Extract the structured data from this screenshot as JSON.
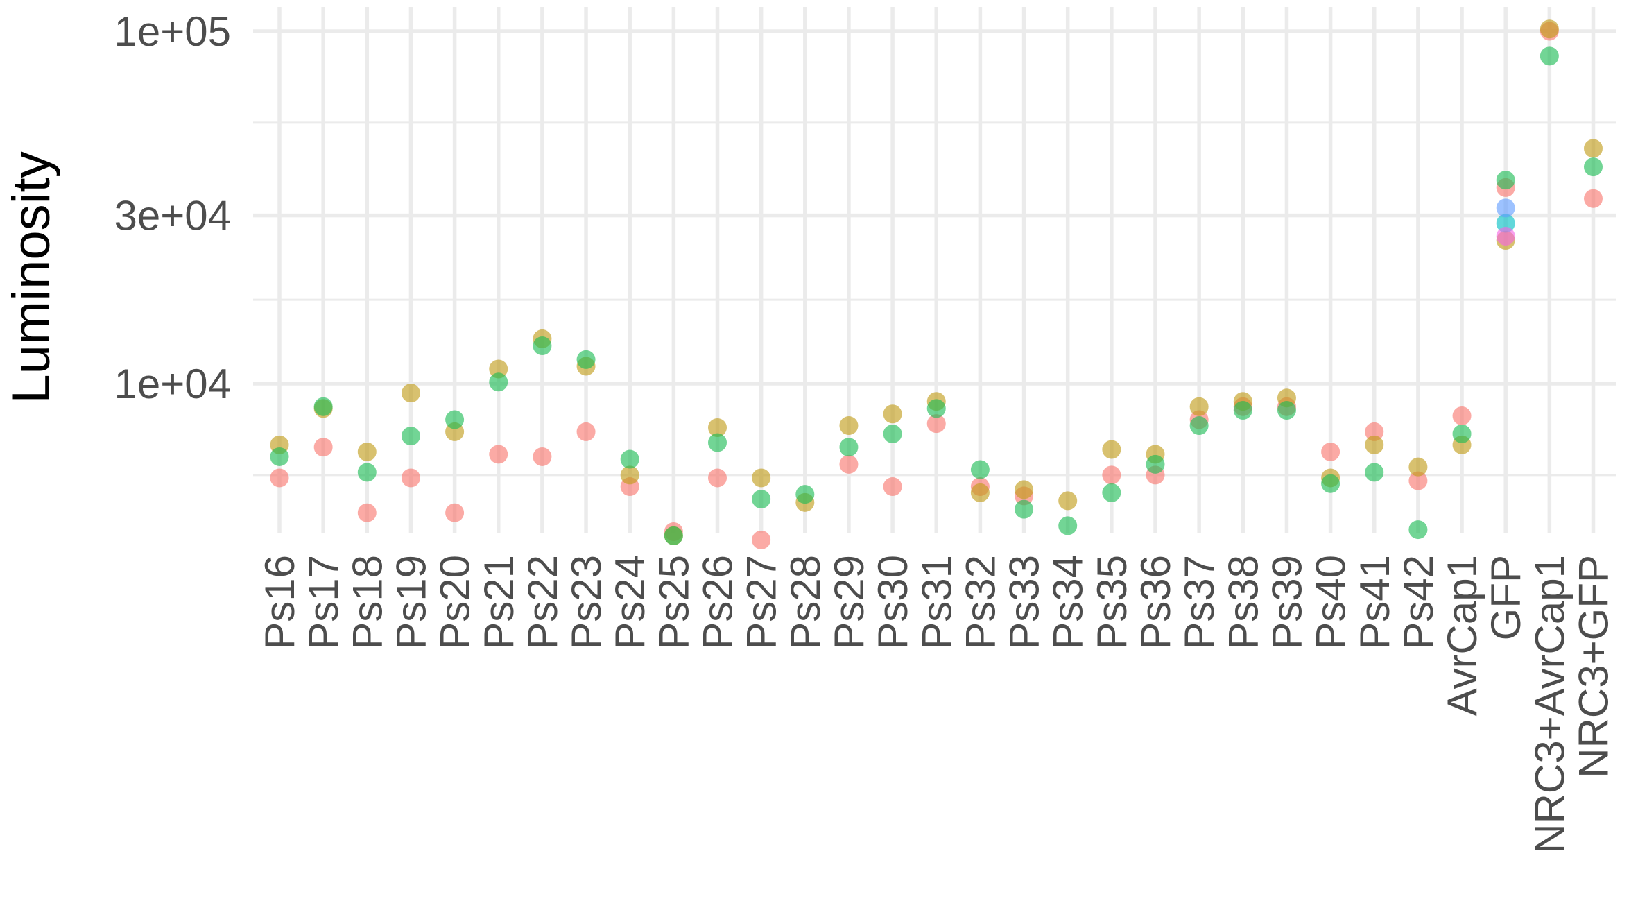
{
  "chart_data": {
    "type": "scatter",
    "title": "",
    "xlabel": "",
    "ylabel": "Luminosity",
    "y_scale": "log10",
    "ylim": [
      3100,
      105000
    ],
    "y_ticks": [
      {
        "value": 100000,
        "label": "1e+05"
      },
      {
        "value": 30000,
        "label": "3e+04"
      },
      {
        "value": 10000,
        "label": "1e+04"
      }
    ],
    "y_minor_ticks": [
      55000,
      17300,
      5500
    ],
    "grid": true,
    "legend": "none",
    "categories": [
      "Ps16",
      "Ps17",
      "Ps18",
      "Ps19",
      "Ps20",
      "Ps21",
      "Ps22",
      "Ps23",
      "Ps24",
      "Ps25",
      "Ps26",
      "Ps27",
      "Ps28",
      "Ps29",
      "Ps30",
      "Ps31",
      "Ps32",
      "Ps33",
      "Ps34",
      "Ps35",
      "Ps36",
      "Ps37",
      "Ps38",
      "Ps39",
      "Ps40",
      "Ps41",
      "Ps42",
      "AvrCap1",
      "GFP",
      "NRC3+AvrCap1",
      "NRC3+GFP"
    ],
    "series": [
      {
        "color": "#f8766d",
        "values": [
          5400,
          6600,
          4300,
          5400,
          4300,
          6300,
          6200,
          7300,
          5100,
          3800,
          5400,
          3600,
          3400,
          5900,
          5100,
          7700,
          5100,
          4800,
          3300,
          5500,
          5500,
          7900,
          8600,
          8600,
          6400,
          7300,
          5300,
          8100,
          36000,
          100000,
          33500
        ]
      },
      {
        "color": "#c09b17",
        "values": [
          6700,
          8500,
          6400,
          9400,
          7300,
          11000,
          13400,
          11200,
          5500,
          3700,
          7500,
          5400,
          4600,
          7600,
          8200,
          8900,
          4900,
          5000,
          4650,
          6500,
          6300,
          8600,
          8900,
          9100,
          5400,
          6700,
          5800,
          6700,
          25500,
          101500,
          46500
        ]
      },
      {
        "color": "#1bbb54",
        "values": [
          6200,
          8600,
          5600,
          7100,
          7900,
          10100,
          12800,
          11700,
          6100,
          3700,
          6800,
          4700,
          4850,
          6600,
          7200,
          8500,
          5700,
          4400,
          3950,
          4900,
          5900,
          7600,
          8400,
          8400,
          5200,
          5600,
          3850,
          7200,
          37800,
          85000,
          41200
        ]
      },
      {
        "color": "#00bfc4",
        "values": [
          null,
          null,
          null,
          null,
          null,
          null,
          null,
          null,
          null,
          null,
          null,
          null,
          null,
          null,
          null,
          null,
          null,
          null,
          null,
          null,
          null,
          null,
          null,
          null,
          null,
          null,
          null,
          null,
          28500,
          null,
          null
        ]
      },
      {
        "color": "#619cff",
        "values": [
          null,
          null,
          null,
          null,
          null,
          null,
          null,
          null,
          null,
          null,
          null,
          null,
          null,
          null,
          null,
          null,
          null,
          null,
          null,
          null,
          null,
          null,
          null,
          null,
          null,
          null,
          null,
          null,
          31500,
          null,
          null
        ]
      },
      {
        "color": "#f564e3",
        "values": [
          null,
          null,
          null,
          null,
          null,
          null,
          null,
          null,
          null,
          null,
          null,
          null,
          null,
          null,
          null,
          null,
          null,
          null,
          null,
          null,
          null,
          null,
          null,
          null,
          null,
          null,
          null,
          null,
          26200,
          null,
          null
        ]
      }
    ]
  }
}
